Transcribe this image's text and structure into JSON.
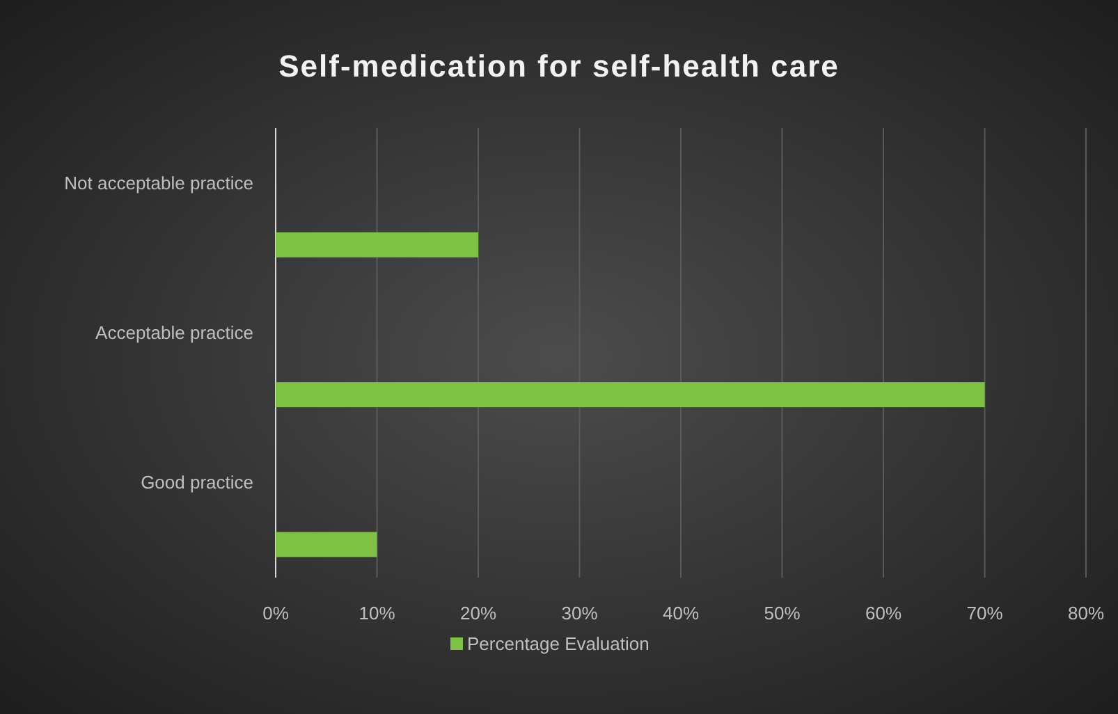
{
  "chart_data": {
    "type": "bar",
    "orientation": "horizontal",
    "title": "Self-medication for self-health care",
    "categories": [
      "Not acceptable practice",
      "Acceptable practice",
      "Good practice"
    ],
    "series": [
      {
        "name": "Percentage Evaluation",
        "color": "#7dc242",
        "values": [
          20,
          70,
          10
        ]
      }
    ],
    "xlim": [
      0,
      80
    ],
    "xticks": [
      {
        "value": 0,
        "label": "0%"
      },
      {
        "value": 10,
        "label": "10%"
      },
      {
        "value": 20,
        "label": "20%"
      },
      {
        "value": 30,
        "label": "30%"
      },
      {
        "value": 40,
        "label": "40%"
      },
      {
        "value": 50,
        "label": "50%"
      },
      {
        "value": 60,
        "label": "60%"
      },
      {
        "value": 70,
        "label": "70%"
      },
      {
        "value": 80,
        "label": "80%"
      }
    ],
    "grid": "x",
    "legend": "bottom"
  }
}
